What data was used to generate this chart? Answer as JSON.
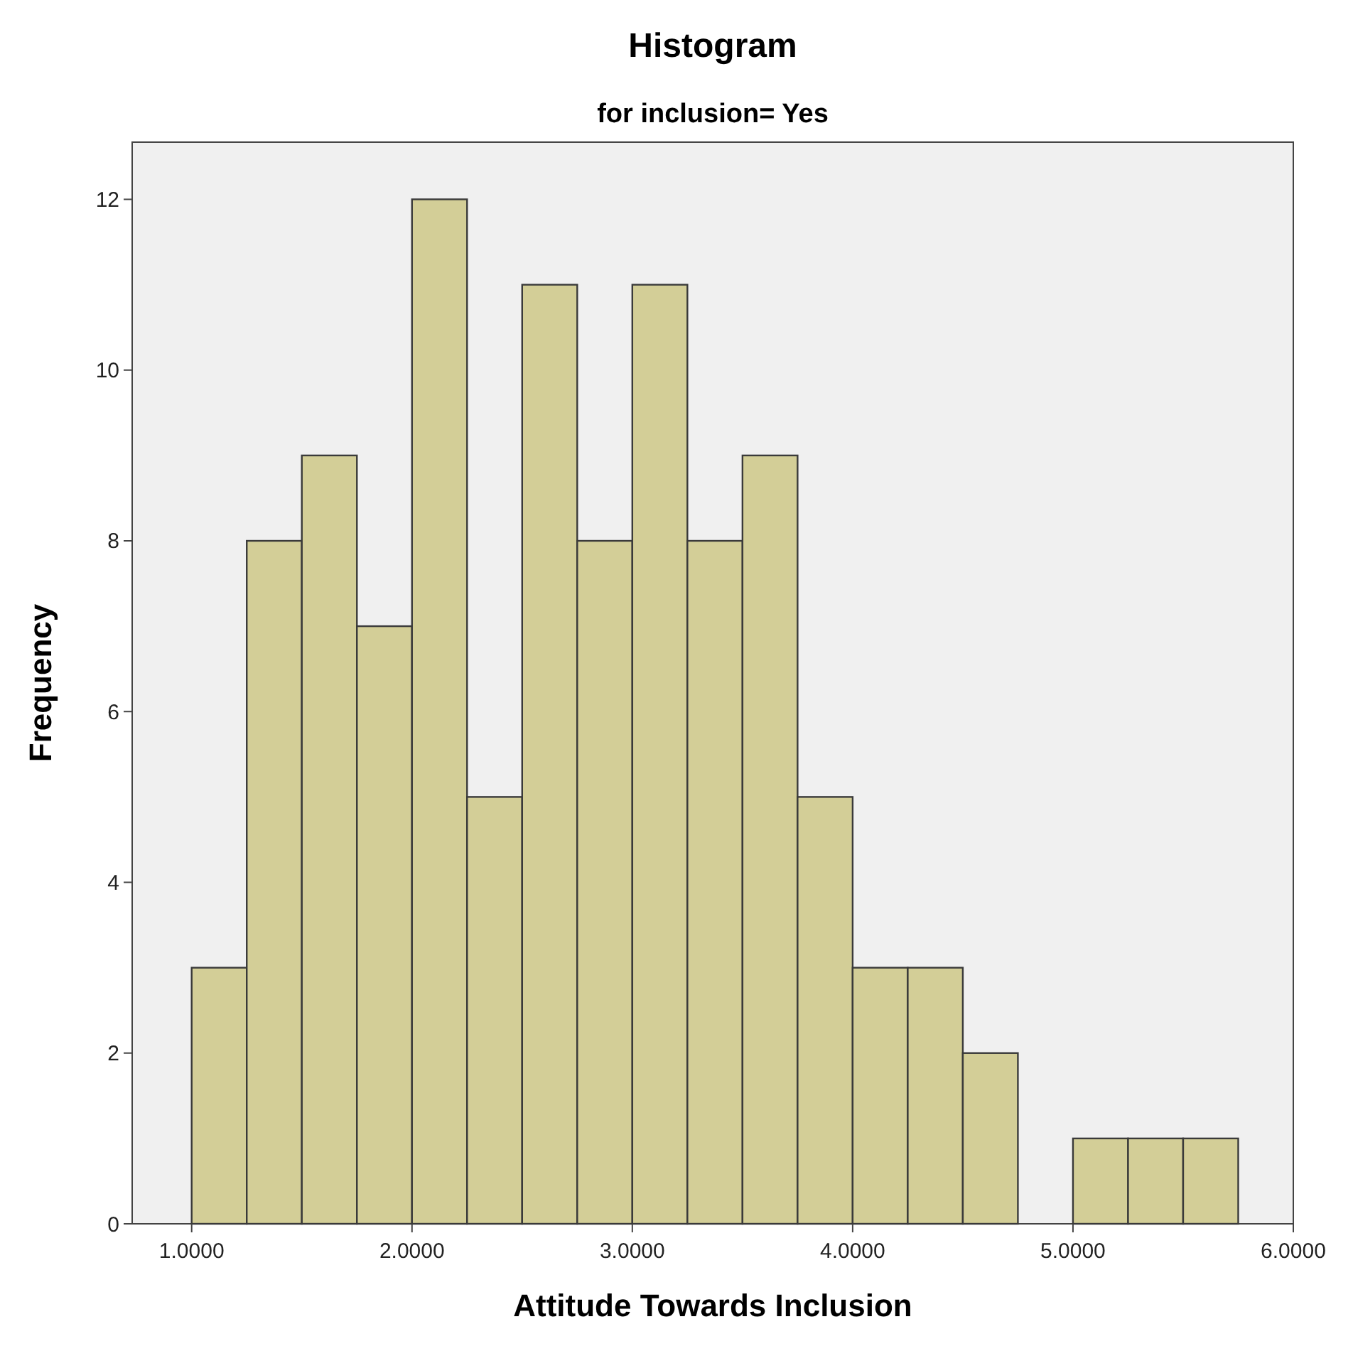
{
  "chart_data": {
    "type": "histogram",
    "title": "Histogram",
    "subtitle": "for inclusion= Yes",
    "xlabel": "Attitude Towards Inclusion",
    "ylabel": "Frequency",
    "bins": [
      1.0,
      1.25,
      1.5,
      1.75,
      2.0,
      2.25,
      2.5,
      2.75,
      3.0,
      3.25,
      3.5,
      3.75,
      4.0,
      4.25,
      4.5,
      4.75,
      5.0,
      5.25,
      5.5,
      5.75
    ],
    "values": [
      3,
      8,
      9,
      7,
      12,
      5,
      11,
      8,
      11,
      8,
      9,
      5,
      3,
      3,
      2,
      0,
      1,
      1,
      1
    ],
    "color": "#d3ce97",
    "xlim": [
      0.73,
      6.0
    ],
    "xticks": [
      {
        "value": 1,
        "label": "1.0000"
      },
      {
        "value": 2,
        "label": "2.0000"
      },
      {
        "value": 3,
        "label": "3.0000"
      },
      {
        "value": 4,
        "label": "4.0000"
      },
      {
        "value": 5,
        "label": "5.0000"
      },
      {
        "value": 6,
        "label": "6.0000"
      }
    ],
    "ylim": [
      0,
      12.67
    ],
    "yticks": [
      0,
      2,
      4,
      6,
      8,
      10,
      12
    ],
    "grid": false
  }
}
